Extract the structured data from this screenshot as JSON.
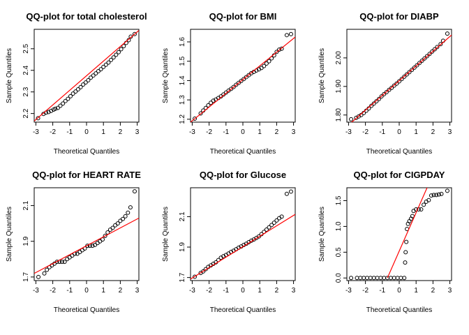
{
  "chart_data": [
    {
      "type": "scatter",
      "title": "QQ-plot for total cholesterol",
      "xlabel": "Theoretical Quantiles",
      "ylabel": "Sample Quantiles",
      "xlim": [
        -3.1,
        3.1
      ],
      "ylim": [
        2.16,
        2.59
      ],
      "xticks": [
        -3,
        -2,
        -1,
        0,
        1,
        2,
        3
      ],
      "yticks": [
        2.2,
        2.3,
        2.4,
        2.5
      ],
      "ytick_labels": [
        "2.2",
        "2.3",
        "2.4",
        "2.5"
      ],
      "line_color": "#ff0000",
      "point_color": "#000000",
      "reference_line": [
        [
          -3.1,
          2.165
        ],
        [
          3.1,
          2.585
        ]
      ],
      "points": [
        [
          -2.87,
          2.178
        ],
        [
          -2.55,
          2.198
        ],
        [
          -2.4,
          2.204
        ],
        [
          -2.25,
          2.207
        ],
        [
          -2.1,
          2.212
        ],
        [
          -1.95,
          2.218
        ],
        [
          -1.85,
          2.222
        ],
        [
          -1.7,
          2.226
        ],
        [
          -1.55,
          2.236
        ],
        [
          -1.4,
          2.246
        ],
        [
          -1.25,
          2.258
        ],
        [
          -1.1,
          2.268
        ],
        [
          -0.95,
          2.28
        ],
        [
          -0.8,
          2.292
        ],
        [
          -0.65,
          2.302
        ],
        [
          -0.5,
          2.312
        ],
        [
          -0.35,
          2.322
        ],
        [
          -0.2,
          2.334
        ],
        [
          -0.05,
          2.344
        ],
        [
          0.1,
          2.354
        ],
        [
          0.25,
          2.366
        ],
        [
          0.4,
          2.376
        ],
        [
          0.55,
          2.386
        ],
        [
          0.7,
          2.396
        ],
        [
          0.85,
          2.405
        ],
        [
          1.0,
          2.416
        ],
        [
          1.15,
          2.426
        ],
        [
          1.3,
          2.436
        ],
        [
          1.45,
          2.448
        ],
        [
          1.6,
          2.46
        ],
        [
          1.75,
          2.472
        ],
        [
          1.9,
          2.484
        ],
        [
          2.05,
          2.498
        ],
        [
          2.2,
          2.512
        ],
        [
          2.35,
          2.527
        ],
        [
          2.5,
          2.54
        ],
        [
          2.62,
          2.556
        ],
        [
          2.85,
          2.568
        ]
      ]
    },
    {
      "type": "scatter",
      "title": "QQ-plot for BMI",
      "xlabel": "Theoretical Quantiles",
      "ylabel": "Sample Quantiles",
      "xlim": [
        -3.1,
        3.1
      ],
      "ylim": [
        1.185,
        1.665
      ],
      "xticks": [
        -3,
        -2,
        -1,
        0,
        1,
        2,
        3
      ],
      "yticks": [
        1.2,
        1.3,
        1.4,
        1.5,
        1.6
      ],
      "ytick_labels": [
        "1.2",
        "1.3",
        "1.4",
        "1.5",
        "1.6"
      ],
      "line_color": "#ff0000",
      "point_color": "#000000",
      "reference_line": [
        [
          -3.1,
          1.185
        ],
        [
          3.1,
          1.625
        ]
      ],
      "points": [
        [
          -2.85,
          1.203
        ],
        [
          -2.5,
          1.23
        ],
        [
          -2.35,
          1.245
        ],
        [
          -2.2,
          1.258
        ],
        [
          -2.05,
          1.272
        ],
        [
          -1.9,
          1.285
        ],
        [
          -1.75,
          1.296
        ],
        [
          -1.6,
          1.302
        ],
        [
          -1.45,
          1.31
        ],
        [
          -1.3,
          1.318
        ],
        [
          -1.15,
          1.328
        ],
        [
          -1.0,
          1.338
        ],
        [
          -0.85,
          1.348
        ],
        [
          -0.7,
          1.357
        ],
        [
          -0.55,
          1.367
        ],
        [
          -0.4,
          1.378
        ],
        [
          -0.25,
          1.388
        ],
        [
          -0.1,
          1.398
        ],
        [
          0.05,
          1.408
        ],
        [
          0.2,
          1.418
        ],
        [
          0.35,
          1.428
        ],
        [
          0.5,
          1.438
        ],
        [
          0.65,
          1.445
        ],
        [
          0.8,
          1.452
        ],
        [
          0.95,
          1.458
        ],
        [
          1.1,
          1.465
        ],
        [
          1.25,
          1.475
        ],
        [
          1.4,
          1.488
        ],
        [
          1.55,
          1.5
        ],
        [
          1.7,
          1.515
        ],
        [
          1.85,
          1.53
        ],
        [
          2.0,
          1.548
        ],
        [
          2.15,
          1.56
        ],
        [
          2.3,
          1.565
        ],
        [
          2.6,
          1.635
        ],
        [
          2.85,
          1.64
        ]
      ]
    },
    {
      "type": "scatter",
      "title": "QQ-plot for DIABP",
      "xlabel": "Theoretical Quantiles",
      "ylabel": "Sample Quantiles",
      "xlim": [
        -3.1,
        3.1
      ],
      "ylim": [
        1.775,
        2.1
      ],
      "xticks": [
        -3,
        -2,
        -1,
        0,
        1,
        2,
        3
      ],
      "yticks": [
        1.8,
        1.9,
        2.0
      ],
      "ytick_labels": [
        "1.80",
        "1.90",
        "2.00"
      ],
      "line_color": "#ff0000",
      "point_color": "#000000",
      "reference_line": [
        [
          -3.1,
          1.76
        ],
        [
          3.1,
          2.08
        ]
      ],
      "points": [
        [
          -2.85,
          1.785
        ],
        [
          -2.55,
          1.79
        ],
        [
          -2.4,
          1.795
        ],
        [
          -2.25,
          1.8
        ],
        [
          -2.1,
          1.807
        ],
        [
          -1.95,
          1.815
        ],
        [
          -1.8,
          1.823
        ],
        [
          -1.65,
          1.832
        ],
        [
          -1.5,
          1.84
        ],
        [
          -1.35,
          1.848
        ],
        [
          -1.2,
          1.856
        ],
        [
          -1.05,
          1.865
        ],
        [
          -0.9,
          1.873
        ],
        [
          -0.75,
          1.88
        ],
        [
          -0.6,
          1.888
        ],
        [
          -0.45,
          1.895
        ],
        [
          -0.3,
          1.903
        ],
        [
          -0.15,
          1.91
        ],
        [
          0.0,
          1.918
        ],
        [
          0.15,
          1.926
        ],
        [
          0.3,
          1.934
        ],
        [
          0.45,
          1.942
        ],
        [
          0.6,
          1.95
        ],
        [
          0.75,
          1.958
        ],
        [
          0.9,
          1.966
        ],
        [
          1.05,
          1.974
        ],
        [
          1.2,
          1.982
        ],
        [
          1.35,
          1.99
        ],
        [
          1.5,
          1.998
        ],
        [
          1.65,
          2.006
        ],
        [
          1.8,
          2.014
        ],
        [
          1.95,
          2.022
        ],
        [
          2.1,
          2.03
        ],
        [
          2.25,
          2.038
        ],
        [
          2.45,
          2.048
        ],
        [
          2.6,
          2.06
        ],
        [
          2.85,
          2.085
        ]
      ]
    },
    {
      "type": "scatter",
      "title": "QQ-plot for HEART RATE",
      "xlabel": "Theoretical Quantiles",
      "ylabel": "Sample Quantiles",
      "xlim": [
        -3.1,
        3.1
      ],
      "ylim": [
        1.68,
        2.2
      ],
      "xticks": [
        -3,
        -2,
        -1,
        0,
        1,
        2,
        3
      ],
      "yticks": [
        1.7,
        1.9,
        2.1
      ],
      "ytick_labels": [
        "1.7",
        "1.9",
        "2.1"
      ],
      "line_color": "#ff0000",
      "point_color": "#000000",
      "reference_line": [
        [
          -3.1,
          1.72
        ],
        [
          3.1,
          2.03
        ]
      ],
      "points": [
        [
          -2.85,
          1.7
        ],
        [
          -2.5,
          1.72
        ],
        [
          -2.35,
          1.74
        ],
        [
          -2.2,
          1.755
        ],
        [
          -2.05,
          1.765
        ],
        [
          -1.9,
          1.775
        ],
        [
          -1.75,
          1.785
        ],
        [
          -1.6,
          1.785
        ],
        [
          -1.45,
          1.785
        ],
        [
          -1.3,
          1.785
        ],
        [
          -1.15,
          1.8
        ],
        [
          -1.0,
          1.81
        ],
        [
          -0.85,
          1.82
        ],
        [
          -0.7,
          1.83
        ],
        [
          -0.55,
          1.83
        ],
        [
          -0.4,
          1.84
        ],
        [
          -0.25,
          1.85
        ],
        [
          -0.1,
          1.86
        ],
        [
          0.05,
          1.875
        ],
        [
          0.2,
          1.875
        ],
        [
          0.35,
          1.875
        ],
        [
          0.5,
          1.88
        ],
        [
          0.65,
          1.89
        ],
        [
          0.8,
          1.9
        ],
        [
          0.95,
          1.91
        ],
        [
          1.1,
          1.93
        ],
        [
          1.25,
          1.95
        ],
        [
          1.4,
          1.965
        ],
        [
          1.55,
          1.975
        ],
        [
          1.7,
          1.99
        ],
        [
          1.85,
          2.0
        ],
        [
          2.0,
          2.015
        ],
        [
          2.15,
          2.025
        ],
        [
          2.3,
          2.04
        ],
        [
          2.45,
          2.06
        ],
        [
          2.6,
          2.09
        ],
        [
          2.85,
          2.18
        ]
      ]
    },
    {
      "type": "scatter",
      "title": "QQ-plot for Glucose",
      "xlabel": "Theoretical Quantiles",
      "ylabel": "Sample Quantiles",
      "xlim": [
        -3.1,
        3.1
      ],
      "ylim": [
        1.68,
        2.29
      ],
      "xticks": [
        -3,
        -2,
        -1,
        0,
        1,
        2,
        3
      ],
      "yticks": [
        1.7,
        1.9,
        2.1
      ],
      "ytick_labels": [
        "1.7",
        "1.9",
        "2.1"
      ],
      "line_color": "#ff0000",
      "point_color": "#000000",
      "reference_line": [
        [
          -3.1,
          1.69
        ],
        [
          3.1,
          2.115
        ]
      ],
      "points": [
        [
          -2.85,
          1.705
        ],
        [
          -2.5,
          1.73
        ],
        [
          -2.35,
          1.74
        ],
        [
          -2.2,
          1.755
        ],
        [
          -2.05,
          1.77
        ],
        [
          -1.9,
          1.78
        ],
        [
          -1.75,
          1.79
        ],
        [
          -1.6,
          1.8
        ],
        [
          -1.45,
          1.815
        ],
        [
          -1.3,
          1.83
        ],
        [
          -1.15,
          1.84
        ],
        [
          -1.0,
          1.848
        ],
        [
          -0.85,
          1.858
        ],
        [
          -0.7,
          1.868
        ],
        [
          -0.55,
          1.876
        ],
        [
          -0.4,
          1.886
        ],
        [
          -0.25,
          1.896
        ],
        [
          -0.1,
          1.904
        ],
        [
          0.05,
          1.914
        ],
        [
          0.2,
          1.922
        ],
        [
          0.35,
          1.932
        ],
        [
          0.5,
          1.942
        ],
        [
          0.65,
          1.95
        ],
        [
          0.8,
          1.96
        ],
        [
          0.95,
          1.97
        ],
        [
          1.1,
          1.985
        ],
        [
          1.25,
          2.0
        ],
        [
          1.4,
          2.015
        ],
        [
          1.55,
          2.03
        ],
        [
          1.7,
          2.045
        ],
        [
          1.85,
          2.06
        ],
        [
          2.0,
          2.075
        ],
        [
          2.15,
          2.09
        ],
        [
          2.3,
          2.1
        ],
        [
          2.6,
          2.25
        ],
        [
          2.85,
          2.265
        ]
      ]
    },
    {
      "type": "scatter",
      "title": "QQ-plot for CIGPDAY",
      "xlabel": "Theoretical Quantiles",
      "ylabel": "Sample Quantiles",
      "xlim": [
        -3.1,
        3.1
      ],
      "ylim": [
        -0.05,
        1.75
      ],
      "xticks": [
        -3,
        -2,
        -1,
        0,
        1,
        2,
        3
      ],
      "yticks": [
        0.0,
        0.5,
        1.0,
        1.5
      ],
      "ytick_labels": [
        "0.0",
        "0.5",
        "1.0",
        "1.5"
      ],
      "line_color": "#ff0000",
      "point_color": "#000000",
      "reference_line": [
        [
          -0.7,
          0.0
        ],
        [
          1.65,
          1.75
        ]
      ],
      "points": [
        [
          -2.85,
          0.0
        ],
        [
          -2.5,
          0.0
        ],
        [
          -2.3,
          0.0
        ],
        [
          -2.1,
          0.0
        ],
        [
          -1.9,
          0.0
        ],
        [
          -1.7,
          0.0
        ],
        [
          -1.5,
          0.0
        ],
        [
          -1.3,
          0.0
        ],
        [
          -1.1,
          0.0
        ],
        [
          -0.9,
          0.0
        ],
        [
          -0.7,
          0.0
        ],
        [
          -0.5,
          0.0
        ],
        [
          -0.3,
          0.0
        ],
        [
          -0.1,
          0.0
        ],
        [
          0.1,
          0.0
        ],
        [
          0.3,
          0.0
        ],
        [
          0.35,
          0.3
        ],
        [
          0.38,
          0.5
        ],
        [
          0.42,
          0.7
        ],
        [
          0.46,
          0.95
        ],
        [
          0.52,
          1.05
        ],
        [
          0.6,
          1.1
        ],
        [
          0.7,
          1.15
        ],
        [
          0.78,
          1.2
        ],
        [
          0.85,
          1.3
        ],
        [
          1.0,
          1.33
        ],
        [
          1.15,
          1.33
        ],
        [
          1.3,
          1.33
        ],
        [
          1.45,
          1.42
        ],
        [
          1.6,
          1.48
        ],
        [
          1.75,
          1.51
        ],
        [
          1.9,
          1.6
        ],
        [
          2.05,
          1.61
        ],
        [
          2.2,
          1.61
        ],
        [
          2.35,
          1.62
        ],
        [
          2.5,
          1.63
        ],
        [
          2.85,
          1.69
        ]
      ]
    }
  ]
}
